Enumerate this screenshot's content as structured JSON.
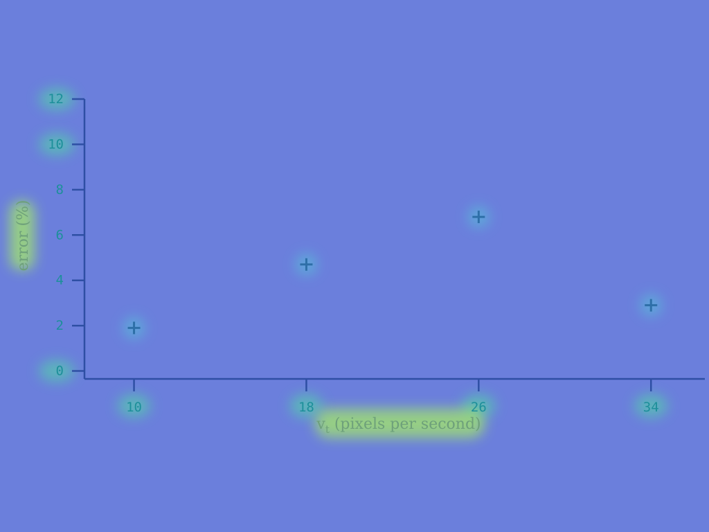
{
  "chart_data": {
    "type": "scatter",
    "title": "",
    "xlabel": "v",
    "xlabel_subscript": "t",
    "xlabel_suffix": " (pixels per second)",
    "ylabel": "error (%)",
    "x_ticks": [
      "10",
      "18",
      "26",
      "34"
    ],
    "y_ticks": [
      "0",
      "2",
      "4",
      "6",
      "8",
      "10",
      "12"
    ],
    "xlim": [
      7.7,
      36.5
    ],
    "ylim": [
      -0.35,
      12
    ],
    "grid": false,
    "marker": "plus",
    "series": [
      {
        "x": [
          10,
          18,
          26,
          34
        ],
        "y": [
          1.9,
          4.7,
          6.8,
          2.9
        ]
      }
    ],
    "colors": {
      "background": "#6b7fdc",
      "axis": "#2e4fa4",
      "marker": "#2e6fa8",
      "tick_text": "#1d8f9a",
      "label_text": "#6ea07a"
    }
  }
}
